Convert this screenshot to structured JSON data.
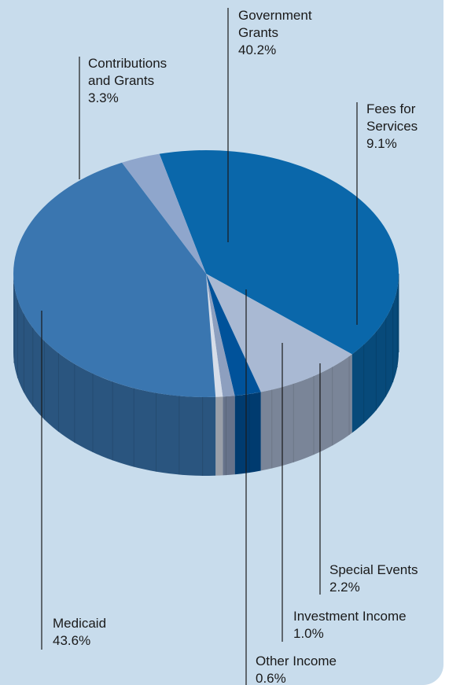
{
  "chart_data": {
    "type": "pie",
    "title": "",
    "slices": [
      {
        "label_lines": [
          "Government",
          "Grants"
        ],
        "value_text": "40.2%",
        "value": 40.2,
        "color": "#0a67aa"
      },
      {
        "label_lines": [
          "Fees for",
          "Services"
        ],
        "value_text": "9.1%",
        "value": 9.1,
        "color": "#a9b9d3"
      },
      {
        "label_lines": [
          "Special Events"
        ],
        "value_text": "2.2%",
        "value": 2.2,
        "color": "#00529a"
      },
      {
        "label_lines": [
          "Investment Income"
        ],
        "value_text": "1.0%",
        "value": 1.0,
        "color": "#8d9fbf"
      },
      {
        "label_lines": [
          "Other Income"
        ],
        "value_text": "0.6%",
        "value": 0.6,
        "color": "#d6dde9"
      },
      {
        "label_lines": [
          "Medicaid"
        ],
        "value_text": "43.6%",
        "value": 43.6,
        "color": "#3a76b0"
      },
      {
        "label_lines": [
          "Contributions",
          "and Grants"
        ],
        "value_text": "3.3%",
        "value": 3.3,
        "color": "#8fa6cc"
      }
    ]
  }
}
